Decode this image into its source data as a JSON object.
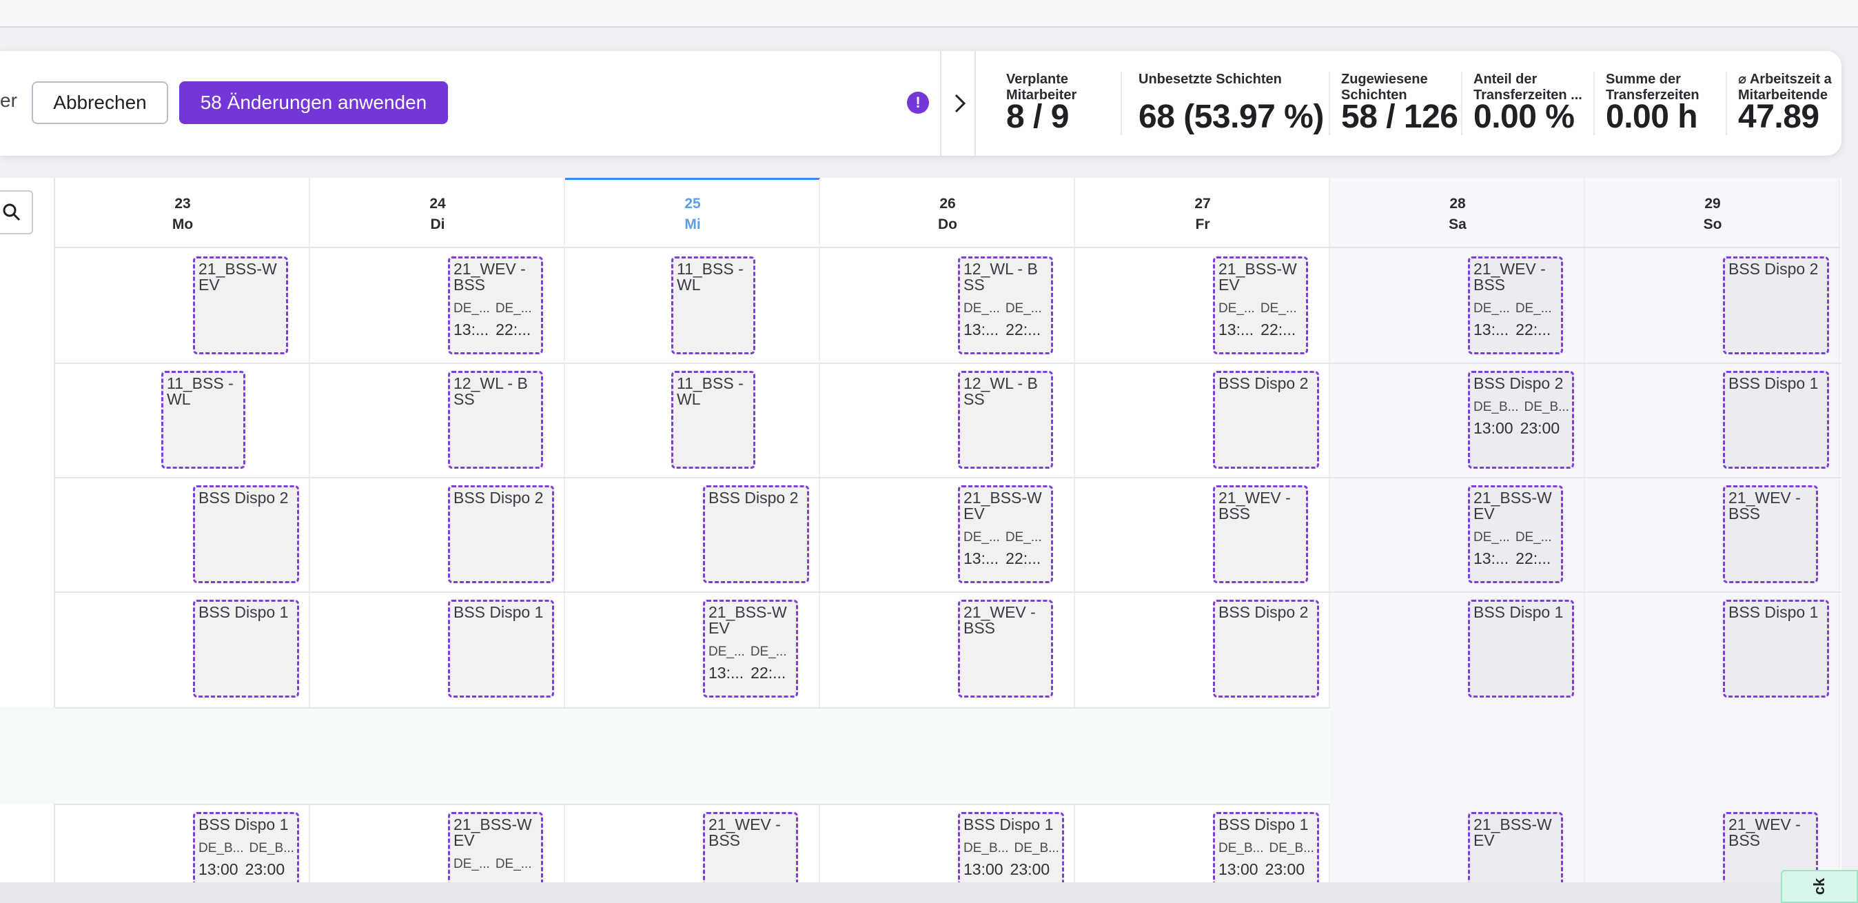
{
  "toolbar": {
    "left_partial_label": "er",
    "cancel_label": "Abbrechen",
    "apply_label": "58 Änderungen anwenden",
    "warning_glyph": "!",
    "stats": [
      {
        "label": "Verplante Mitarbeiter",
        "value": "8 / 9"
      },
      {
        "label": "Unbesetzte Schichten",
        "value": "68 (53.97 %)"
      },
      {
        "label": "Zugewiesene Schichten",
        "value": "58 / 126"
      },
      {
        "label": "Anteil der Transferzeiten ...",
        "value": "0.00 %"
      },
      {
        "label": "Summe der Transferzeiten",
        "value": "0.00 h"
      },
      {
        "label": "⌀ Arbeitszeit a Mitarbeitende",
        "value": "47.89"
      }
    ]
  },
  "days": [
    {
      "num": "23",
      "name": "Mo"
    },
    {
      "num": "24",
      "name": "Di"
    },
    {
      "num": "25",
      "name": "Mi"
    },
    {
      "num": "26",
      "name": "Do"
    },
    {
      "num": "27",
      "name": "Fr"
    },
    {
      "num": "28",
      "name": "Sa"
    },
    {
      "num": "29",
      "name": "So"
    }
  ],
  "today_index": 2,
  "rows": [
    [
      {
        "title": "21_BSS-WEV"
      },
      {
        "title": "21_WEV - BSS",
        "meta": [
          "DE_...",
          "DE_..."
        ],
        "times": [
          "13:...",
          "22:..."
        ]
      },
      {
        "title": "11_BSS - WL"
      },
      {
        "title": "12_WL - BSS",
        "meta": [
          "DE_...",
          "DE_..."
        ],
        "times": [
          "13:...",
          "22:..."
        ]
      },
      {
        "title": "21_BSS-WEV",
        "meta": [
          "DE_...",
          "DE_..."
        ],
        "times": [
          "13:...",
          "22:..."
        ]
      },
      {
        "title": "21_WEV - BSS",
        "meta": [
          "DE_...",
          "DE_..."
        ],
        "times": [
          "13:...",
          "22:..."
        ]
      },
      {
        "title": "BSS Dispo 2"
      }
    ],
    [
      {
        "title": "11_BSS - WL"
      },
      {
        "title": "12_WL - BSS"
      },
      {
        "title": "11_BSS - WL"
      },
      {
        "title": "12_WL - BSS"
      },
      {
        "title": "BSS Dispo 2"
      },
      {
        "title": "BSS Dispo 2",
        "meta": [
          "DE_B...",
          "DE_B..."
        ],
        "times": [
          "13:00",
          "23:00"
        ]
      },
      {
        "title": "BSS Dispo 1"
      }
    ],
    [
      {
        "title": "BSS Dispo 2"
      },
      {
        "title": "BSS Dispo 2"
      },
      {
        "title": "BSS Dispo 2"
      },
      {
        "title": "21_BSS-WEV",
        "meta": [
          "DE_...",
          "DE_..."
        ],
        "times": [
          "13:...",
          "22:..."
        ]
      },
      {
        "title": "21_WEV - BSS"
      },
      {
        "title": "21_BSS-WEV",
        "meta": [
          "DE_...",
          "DE_..."
        ],
        "times": [
          "13:...",
          "22:..."
        ]
      },
      {
        "title": "21_WEV - BSS"
      }
    ],
    [
      {
        "title": "BSS Dispo 1"
      },
      {
        "title": "BSS Dispo 1"
      },
      {
        "title": "21_BSS-WEV",
        "meta": [
          "DE_...",
          "DE_..."
        ],
        "times": [
          "13:...",
          "22:..."
        ]
      },
      {
        "title": "21_WEV - BSS"
      },
      {
        "title": "BSS Dispo 2"
      },
      {
        "title": "BSS Dispo 1"
      },
      {
        "title": "BSS Dispo 1"
      }
    ],
    [
      {
        "title": "BSS Dispo 1",
        "meta": [
          "DE_B...",
          "DE_B..."
        ],
        "times": [
          "13:00",
          "23:00"
        ]
      },
      {
        "title": "21_BSS-WEV",
        "meta": [
          "DE_...",
          "DE_..."
        ]
      },
      {
        "title": "21_WEV - BSS"
      },
      {
        "title": "BSS Dispo 1",
        "meta": [
          "DE_B...",
          "DE_B..."
        ],
        "times": [
          "13:00",
          "23:00"
        ]
      },
      {
        "title": "BSS Dispo 1",
        "meta": [
          "DE_B...",
          "DE_B..."
        ],
        "times": [
          "13:00",
          "23:00"
        ]
      },
      {
        "title": "21_BSS-WEV"
      },
      {
        "title": "21_WEV - BSS"
      }
    ]
  ],
  "feedback_label": "ck"
}
